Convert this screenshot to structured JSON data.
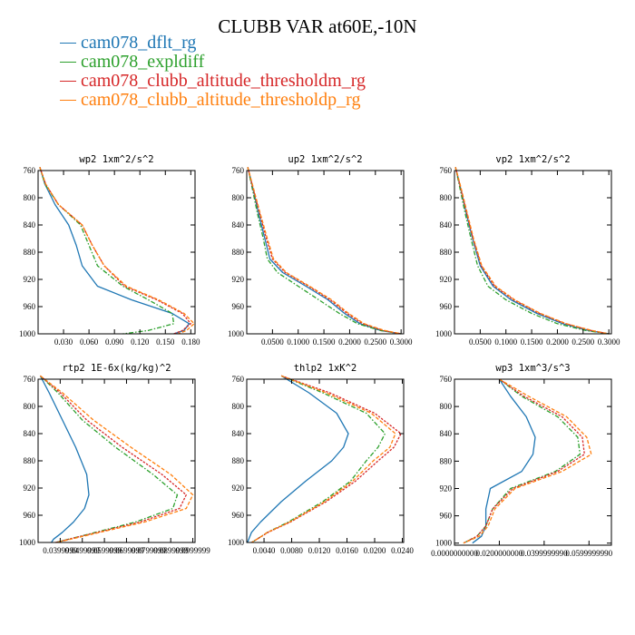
{
  "title": "CLUBB VAR at60E,-10N",
  "legend": [
    {
      "name": "cam078_dflt_rg",
      "color": "#1f77b4"
    },
    {
      "name": "cam078_expldiff",
      "color": "#2ca02c"
    },
    {
      "name": "cam078_clubb_altitude_thresholdm_rg",
      "color": "#d62728"
    },
    {
      "name": "cam078_clubb_altitude_thresholdp_rg",
      "color": "#ff7f0e"
    }
  ],
  "chart_data": [
    {
      "type": "line",
      "title": "wp2  1xm^2/s^2",
      "xlim": [
        0,
        0.185
      ],
      "ylim": [
        760,
        1000
      ],
      "y_inverted": true,
      "xticks": [
        0.03,
        0.06,
        0.09,
        0.12,
        0.15,
        0.18
      ],
      "xtick_labels": [
        "0.030",
        "0.060",
        "0.090",
        "0.120",
        "0.150",
        "0.180"
      ],
      "yticks": [
        760,
        800,
        840,
        880,
        920,
        960,
        1000
      ],
      "y": [
        755,
        780,
        810,
        840,
        870,
        900,
        930,
        950,
        970,
        985,
        995,
        1000
      ],
      "series": [
        {
          "values": [
            0.002,
            0.008,
            0.02,
            0.036,
            0.045,
            0.052,
            0.07,
            0.11,
            0.158,
            0.178,
            0.172,
            0.16
          ]
        },
        {
          "values": [
            0.002,
            0.008,
            0.024,
            0.05,
            0.06,
            0.07,
            0.1,
            0.13,
            0.158,
            0.16,
            0.13,
            0.1
          ]
        },
        {
          "values": [
            0.002,
            0.009,
            0.024,
            0.052,
            0.064,
            0.078,
            0.102,
            0.14,
            0.17,
            0.18,
            0.17,
            0.16
          ]
        },
        {
          "values": [
            0.002,
            0.009,
            0.024,
            0.052,
            0.064,
            0.078,
            0.104,
            0.142,
            0.172,
            0.184,
            0.175,
            0.165
          ]
        }
      ]
    },
    {
      "type": "line",
      "title": "up2  1xm^2/s^2",
      "xlim": [
        0,
        0.305
      ],
      "ylim": [
        760,
        1000
      ],
      "y_inverted": true,
      "xticks": [
        0.05,
        0.1,
        0.15,
        0.2,
        0.25,
        0.3
      ],
      "xtick_labels": [
        "0.0500",
        "0.1000",
        "0.1500",
        "0.2000",
        "0.2500",
        "0.3000"
      ],
      "yticks": [
        760,
        800,
        840,
        880,
        920,
        960,
        1000
      ],
      "y": [
        755,
        780,
        820,
        860,
        890,
        910,
        930,
        950,
        970,
        985,
        995,
        1000
      ],
      "series": [
        {
          "values": [
            0.002,
            0.01,
            0.022,
            0.035,
            0.045,
            0.07,
            0.115,
            0.158,
            0.19,
            0.22,
            0.26,
            0.3
          ]
        },
        {
          "values": [
            0.002,
            0.009,
            0.02,
            0.032,
            0.04,
            0.06,
            0.1,
            0.14,
            0.18,
            0.215,
            0.26,
            0.3
          ]
        },
        {
          "values": [
            0.002,
            0.01,
            0.024,
            0.038,
            0.05,
            0.075,
            0.12,
            0.162,
            0.195,
            0.225,
            0.265,
            0.3
          ]
        },
        {
          "values": [
            0.002,
            0.011,
            0.025,
            0.04,
            0.052,
            0.077,
            0.122,
            0.165,
            0.198,
            0.228,
            0.268,
            0.3
          ]
        }
      ]
    },
    {
      "type": "line",
      "title": "vp2  1xm^2/s^2",
      "xlim": [
        0,
        0.305
      ],
      "ylim": [
        760,
        1000
      ],
      "y_inverted": true,
      "xticks": [
        0.05,
        0.1,
        0.15,
        0.2,
        0.25,
        0.3
      ],
      "xtick_labels": [
        "0.0500",
        "0.1000",
        "0.1500",
        "0.2000",
        "0.2500",
        "0.3000"
      ],
      "yticks": [
        760,
        800,
        840,
        880,
        920,
        960,
        1000
      ],
      "y": [
        755,
        780,
        820,
        860,
        900,
        930,
        950,
        970,
        985,
        995,
        1000
      ],
      "series": [
        {
          "values": [
            0.002,
            0.01,
            0.022,
            0.035,
            0.05,
            0.075,
            0.11,
            0.16,
            0.21,
            0.26,
            0.3
          ]
        },
        {
          "values": [
            0.002,
            0.009,
            0.02,
            0.032,
            0.045,
            0.065,
            0.1,
            0.15,
            0.2,
            0.255,
            0.3
          ]
        },
        {
          "values": [
            0.002,
            0.01,
            0.023,
            0.036,
            0.052,
            0.078,
            0.115,
            0.165,
            0.215,
            0.265,
            0.3
          ]
        },
        {
          "values": [
            0.002,
            0.011,
            0.024,
            0.037,
            0.053,
            0.08,
            0.117,
            0.167,
            0.217,
            0.267,
            0.3
          ]
        }
      ]
    },
    {
      "type": "line",
      "title": "rtp2  1E-6x(kg/kg)^2",
      "xlim": [
        0.029999999,
        0.100999999
      ],
      "ylim": [
        760,
        1000
      ],
      "y_inverted": true,
      "xticks": [
        0.039999999,
        0.049999999,
        0.059999999,
        0.069999999,
        0.079999999,
        0.089999999,
        0.099999999
      ],
      "xtick_labels": [
        "0.0399999",
        "0.0499999",
        "0.0599999",
        "0.0699999",
        "0.0799999",
        "0.0899999",
        "0.0999999"
      ],
      "yticks": [
        760,
        800,
        840,
        880,
        920,
        960,
        1000
      ],
      "y": [
        755,
        780,
        820,
        860,
        900,
        930,
        950,
        970,
        985,
        995,
        1000
      ],
      "series": [
        {
          "values": [
            0.031,
            0.035,
            0.041,
            0.047,
            0.052,
            0.053,
            0.051,
            0.046,
            0.041,
            0.037,
            0.036
          ]
        },
        {
          "values": [
            0.031,
            0.039,
            0.05,
            0.065,
            0.082,
            0.093,
            0.091,
            0.074,
            0.056,
            0.044,
            0.038
          ]
        },
        {
          "values": [
            0.031,
            0.04,
            0.052,
            0.068,
            0.086,
            0.097,
            0.094,
            0.076,
            0.057,
            0.044,
            0.038
          ]
        },
        {
          "values": [
            0.031,
            0.041,
            0.055,
            0.072,
            0.09,
            0.1,
            0.097,
            0.078,
            0.058,
            0.045,
            0.038
          ]
        }
      ]
    },
    {
      "type": "line",
      "title": "thlp2  1xK^2",
      "xlim": [
        0.0015,
        0.0242
      ],
      "ylim": [
        760,
        1000
      ],
      "y_inverted": true,
      "xticks": [
        0.004,
        0.008,
        0.012,
        0.016,
        0.02,
        0.024
      ],
      "xtick_labels": [
        "0.0040",
        "0.0080",
        "0.0120",
        "0.0160",
        "0.0200",
        "0.0240"
      ],
      "yticks": [
        760,
        800,
        840,
        880,
        920,
        960,
        1000
      ],
      "y": [
        755,
        780,
        810,
        840,
        860,
        880,
        910,
        940,
        970,
        985,
        995,
        1000
      ],
      "series": [
        {
          "values": [
            0.0065,
            0.0105,
            0.0145,
            0.0162,
            0.0155,
            0.0138,
            0.01,
            0.0065,
            0.0035,
            0.0022,
            0.0018,
            0.0016
          ]
        },
        {
          "values": [
            0.0065,
            0.0125,
            0.0188,
            0.0215,
            0.0205,
            0.0188,
            0.0165,
            0.0125,
            0.0075,
            0.0045,
            0.003,
            0.0022
          ]
        },
        {
          "values": [
            0.0065,
            0.0135,
            0.02,
            0.0238,
            0.0228,
            0.0205,
            0.0172,
            0.013,
            0.0078,
            0.0046,
            0.003,
            0.0022
          ]
        },
        {
          "values": [
            0.0065,
            0.013,
            0.0195,
            0.023,
            0.0222,
            0.0198,
            0.0168,
            0.0128,
            0.0077,
            0.0045,
            0.003,
            0.0022
          ]
        }
      ]
    },
    {
      "type": "line",
      "title": "wp3  1xm^3/s^3",
      "xlim": [
        0,
        0.07
      ],
      "ylim": [
        760,
        1003
      ],
      "y_inverted": true,
      "xticks": [
        0,
        0.019999999,
        0.039999999,
        0.059999999
      ],
      "xtick_labels": [
        "0.0000000000",
        "0.0200000000",
        "0.0399999990",
        "0.0599999990"
      ],
      "yticks": [
        760,
        800,
        840,
        880,
        920,
        960,
        1000
      ],
      "y": [
        760,
        785,
        815,
        845,
        870,
        895,
        920,
        950,
        975,
        990,
        1000
      ],
      "series": [
        {
          "values": [
            0.02,
            0.025,
            0.032,
            0.036,
            0.035,
            0.03,
            0.016,
            0.014,
            0.014,
            0.012,
            0.008
          ]
        },
        {
          "values": [
            0.02,
            0.03,
            0.046,
            0.055,
            0.056,
            0.045,
            0.025,
            0.017,
            0.014,
            0.01,
            0.004
          ]
        },
        {
          "values": [
            0.02,
            0.031,
            0.048,
            0.057,
            0.058,
            0.046,
            0.026,
            0.017,
            0.014,
            0.01,
            0.004
          ]
        },
        {
          "values": [
            0.02,
            0.033,
            0.05,
            0.059,
            0.061,
            0.048,
            0.027,
            0.018,
            0.015,
            0.011,
            0.004
          ]
        }
      ]
    }
  ]
}
